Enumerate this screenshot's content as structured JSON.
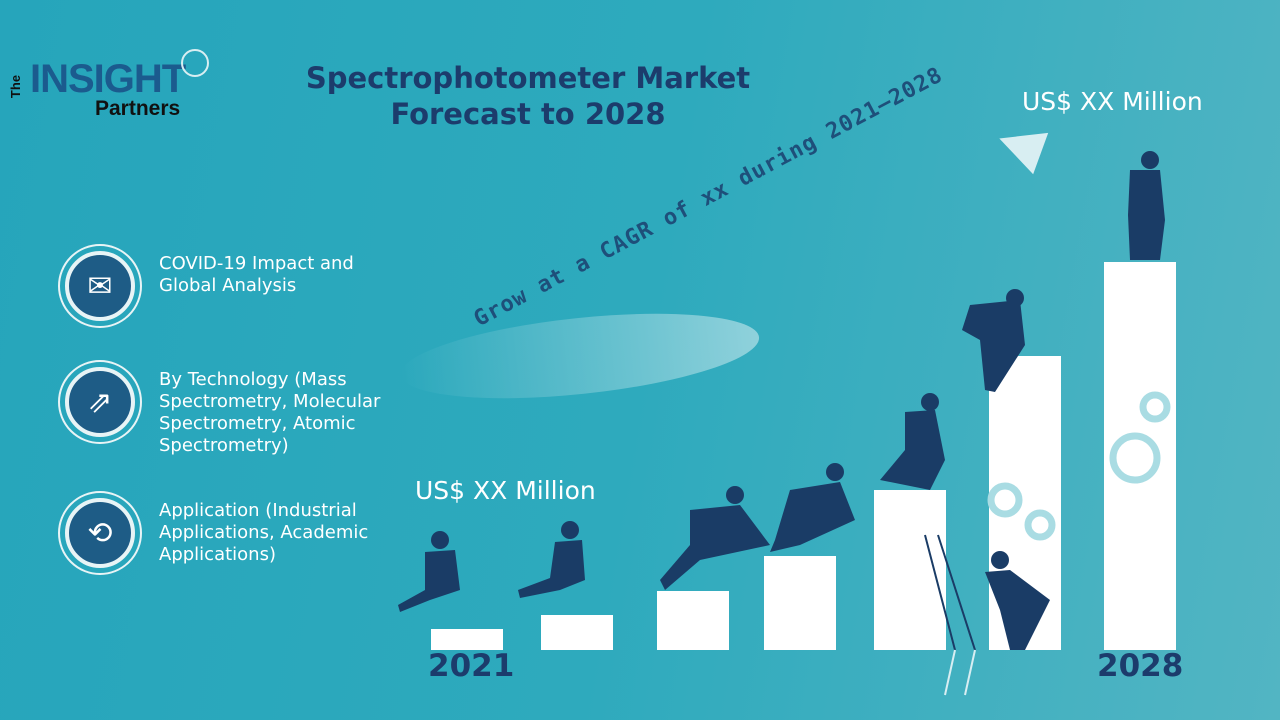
{
  "logo": {
    "the": "The",
    "insight": "INSIGHT",
    "partners": "Partners"
  },
  "title": {
    "line1": "Spectrophotometer Market",
    "line2": "Forecast to 2028"
  },
  "features": [
    {
      "icon": "envelope-icon",
      "text": "COVID-19 Impact and Global Analysis"
    },
    {
      "icon": "growth-chart-icon",
      "text": "By Technology (Mass Spectrometry, Molecular Spectrometry, Atomic Spectrometry)"
    },
    {
      "icon": "exchange-arrows-icon",
      "text": "Application (Industrial Applications, Academic Applications)"
    }
  ],
  "cagr_text": "Grow at a CAGR of xx during 2021–2028",
  "start": {
    "year": "2021",
    "value": "US$ XX Million"
  },
  "end": {
    "year": "2028",
    "value": "US$ XX Million"
  },
  "colors": {
    "background": "#2eaabd",
    "title": "#1c3c6c",
    "icon_circle": "#1e5c86",
    "bars": "#ffffff"
  }
}
